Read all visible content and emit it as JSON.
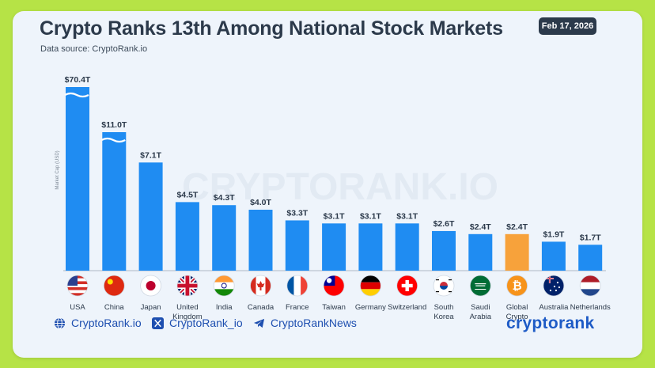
{
  "header": {
    "title": "Crypto Ranks 13th Among National Stock Markets",
    "subtitle": "Data source: CryptoRank.io",
    "date": "Feb 17, 2026"
  },
  "watermark": "CRYPTORANK.IO",
  "chart_data": {
    "type": "bar",
    "title": "Crypto Ranks 13th Among National Stock Markets",
    "ylabel": "Market Cap (USD)",
    "xlabel": "",
    "unit": "T USD",
    "ylim_visible": [
      0,
      8
    ],
    "axis_break": [
      "USA",
      "China"
    ],
    "categories": [
      "USA",
      "China",
      "Japan",
      "United Kingdom",
      "India",
      "Canada",
      "France",
      "Taiwan",
      "Germany",
      "Switzerland",
      "South Korea",
      "Saudi Arabia",
      "Global Crypto",
      "Australia",
      "Netherlands"
    ],
    "values": [
      70.4,
      11.0,
      7.1,
      4.5,
      4.3,
      4.0,
      3.3,
      3.1,
      3.1,
      3.1,
      2.6,
      2.4,
      2.4,
      1.9,
      1.7
    ],
    "value_labels": [
      "$70.4T",
      "$11.0T",
      "$7.1T",
      "$4.5T",
      "$4.3T",
      "$4.0T",
      "$3.3T",
      "$3.1T",
      "$3.1T",
      "$3.1T",
      "$2.6T",
      "$2.4T",
      "$2.4T",
      "$1.9T",
      "$1.7T"
    ],
    "x_labels": [
      [
        "USA"
      ],
      [
        "China"
      ],
      [
        "Japan"
      ],
      [
        "United",
        "Kingdom"
      ],
      [
        "India"
      ],
      [
        "Canada"
      ],
      [
        "France"
      ],
      [
        "Taiwan"
      ],
      [
        "Germany"
      ],
      [
        "Switzerland"
      ],
      [
        "South",
        "Korea"
      ],
      [
        "Saudi",
        "Arabia"
      ],
      [
        "Global",
        "Crypto"
      ],
      [
        "Australia"
      ],
      [
        "Netherlands"
      ]
    ],
    "highlight": "Global Crypto",
    "colors": {
      "bar": "#1f8cf2",
      "highlight": "#f7a23b",
      "label": "#2c3a4b",
      "axis": "#7c8794"
    },
    "flags": [
      "flag-usa-icon",
      "flag-china-icon",
      "flag-japan-icon",
      "flag-uk-icon",
      "flag-india-icon",
      "flag-canada-icon",
      "flag-france-icon",
      "flag-taiwan-icon",
      "flag-germany-icon",
      "flag-switzerland-icon",
      "flag-south-korea-icon",
      "flag-saudi-arabia-icon",
      "bitcoin-icon",
      "flag-australia-icon",
      "flag-netherlands-icon"
    ]
  },
  "footer": {
    "website": "CryptoRank.io",
    "x_handle": "CryptoRank_io",
    "telegram": "CryptoRankNews",
    "brand": "cryptorank"
  }
}
